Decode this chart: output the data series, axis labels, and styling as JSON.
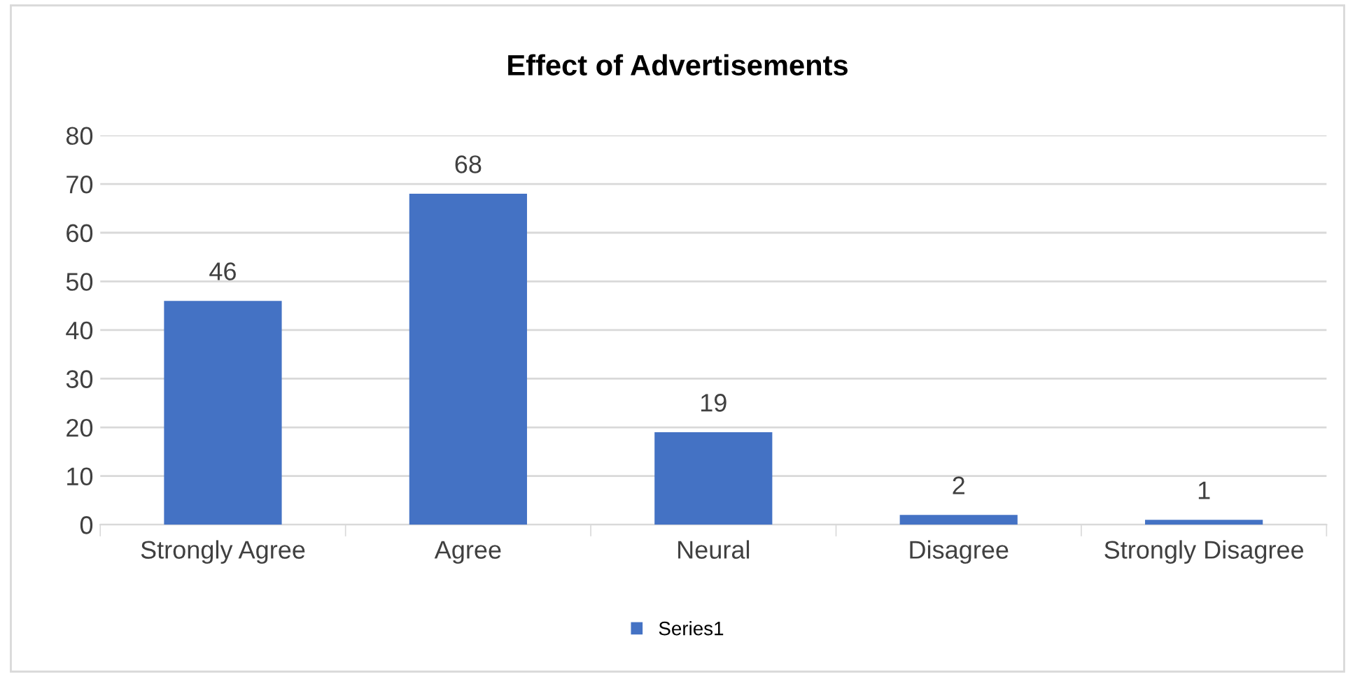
{
  "chart_data": {
    "type": "bar",
    "title": "Effect of Advertisements",
    "categories": [
      "Strongly Agree",
      "Agree",
      "Neural",
      "Disagree",
      "Strongly Disagree"
    ],
    "series": [
      {
        "name": "Series1",
        "color": "#4472c4",
        "values": [
          46,
          68,
          19,
          2,
          1
        ]
      }
    ],
    "ylim": [
      0,
      80
    ],
    "yticks": [
      0,
      10,
      20,
      30,
      40,
      50,
      60,
      70,
      80
    ],
    "grid": "y",
    "legend": "bottom",
    "data_labels": true
  }
}
